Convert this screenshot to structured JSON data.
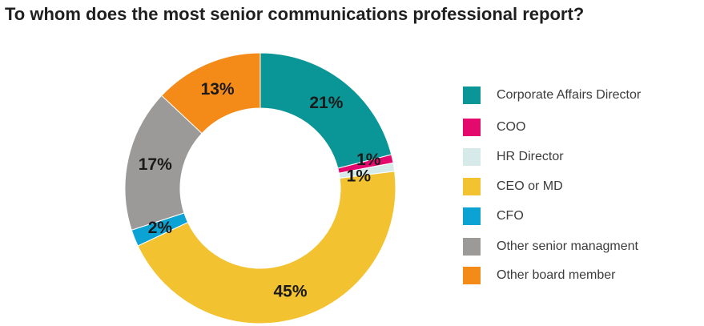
{
  "chart_data": {
    "type": "pie",
    "title": "To whom does the most senior communications professional report?",
    "donut": true,
    "series": [
      {
        "name": "Corporate Affairs Director",
        "value": 21,
        "label": "21%",
        "color": "#0a9596"
      },
      {
        "name": "COO",
        "value": 1,
        "label": "1%",
        "color": "#e4096c"
      },
      {
        "name": "HR Director",
        "value": 1,
        "label": "1%",
        "color": "#d6eaea"
      },
      {
        "name": "CEO or MD",
        "value": 45,
        "label": "45%",
        "color": "#f2c230"
      },
      {
        "name": "CFO",
        "value": 2,
        "label": "2%",
        "color": "#0aa3d3"
      },
      {
        "name": "Other senior managment",
        "value": 17,
        "label": "17%",
        "color": "#9b9a99"
      },
      {
        "name": "Other board member",
        "value": 13,
        "label": "13%",
        "color": "#f48a17"
      }
    ],
    "legend_position": "right"
  }
}
